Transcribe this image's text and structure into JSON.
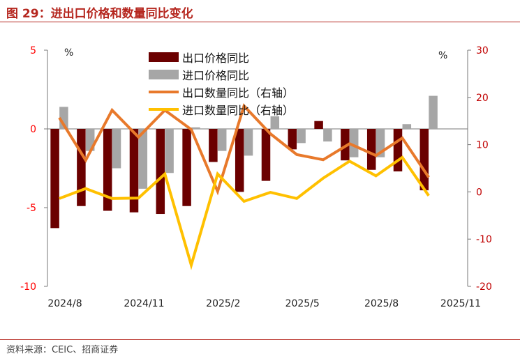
{
  "header": {
    "title": "图 29：进出口价格和数量同比变化"
  },
  "footer": {
    "source": "资料来源：CEIC、招商证券"
  },
  "colors": {
    "export_price": "#6b0000",
    "import_price": "#a6a6a6",
    "export_volume": "#e8792b",
    "import_volume": "#ffc000",
    "left_axis": "#ff0000",
    "right_axis": "#c00000",
    "rule": "#b5261e"
  },
  "chart_data": {
    "type": "bar",
    "x": [
      "2024/8",
      "2024/9",
      "2024/10",
      "2024/11",
      "2024/12",
      "2025/1",
      "2025/2",
      "2025/3",
      "2025/4",
      "2025/5",
      "2025/6",
      "2025/7",
      "2025/8",
      "2025/9",
      "2025/10"
    ],
    "x_tick_labels": [
      "2024/8",
      "2024/11",
      "2025/2",
      "2025/5",
      "2025/8",
      "2025/11"
    ],
    "series": [
      {
        "name": "出口价格同比",
        "kind": "bar",
        "axis": "left",
        "values": [
          -6.3,
          -4.9,
          -5.2,
          -5.3,
          -5.4,
          -4.9,
          -2.1,
          -4.0,
          -3.3,
          -1.3,
          0.5,
          -2.0,
          -2.6,
          -2.7,
          -3.9
        ]
      },
      {
        "name": "进口价格同比",
        "kind": "bar",
        "axis": "left",
        "values": [
          1.4,
          -1.4,
          -2.5,
          -3.8,
          -2.8,
          0.1,
          -1.4,
          -1.7,
          0.8,
          -0.9,
          -0.8,
          -1.8,
          -1.8,
          0.3,
          2.1
        ]
      },
      {
        "name": "出口数量同比（右轴）",
        "kind": "line",
        "axis": "right",
        "values": [
          15.7,
          6.7,
          17.3,
          11.6,
          17.3,
          13.2,
          0.1,
          18.2,
          12.3,
          7.9,
          6.8,
          10.2,
          7.7,
          11.4,
          3.1
        ]
      },
      {
        "name": "进口数量同比（右轴）",
        "kind": "line",
        "axis": "right",
        "values": [
          -1.4,
          0.7,
          -1.4,
          -1.3,
          3.8,
          -15.5,
          3.8,
          -2.0,
          -0.1,
          -1.4,
          2.9,
          6.5,
          3.4,
          7.3,
          -0.8
        ]
      }
    ],
    "y_left": {
      "unit": "%",
      "ylim": [
        -10,
        5
      ],
      "ticks": [
        5,
        0,
        -5,
        -10
      ]
    },
    "y_right": {
      "unit": "%",
      "ylim": [
        -20,
        30
      ],
      "ticks": [
        30,
        20,
        10,
        0,
        -10,
        -20
      ]
    },
    "legend": {
      "position": "top-center"
    },
    "grid": false
  }
}
